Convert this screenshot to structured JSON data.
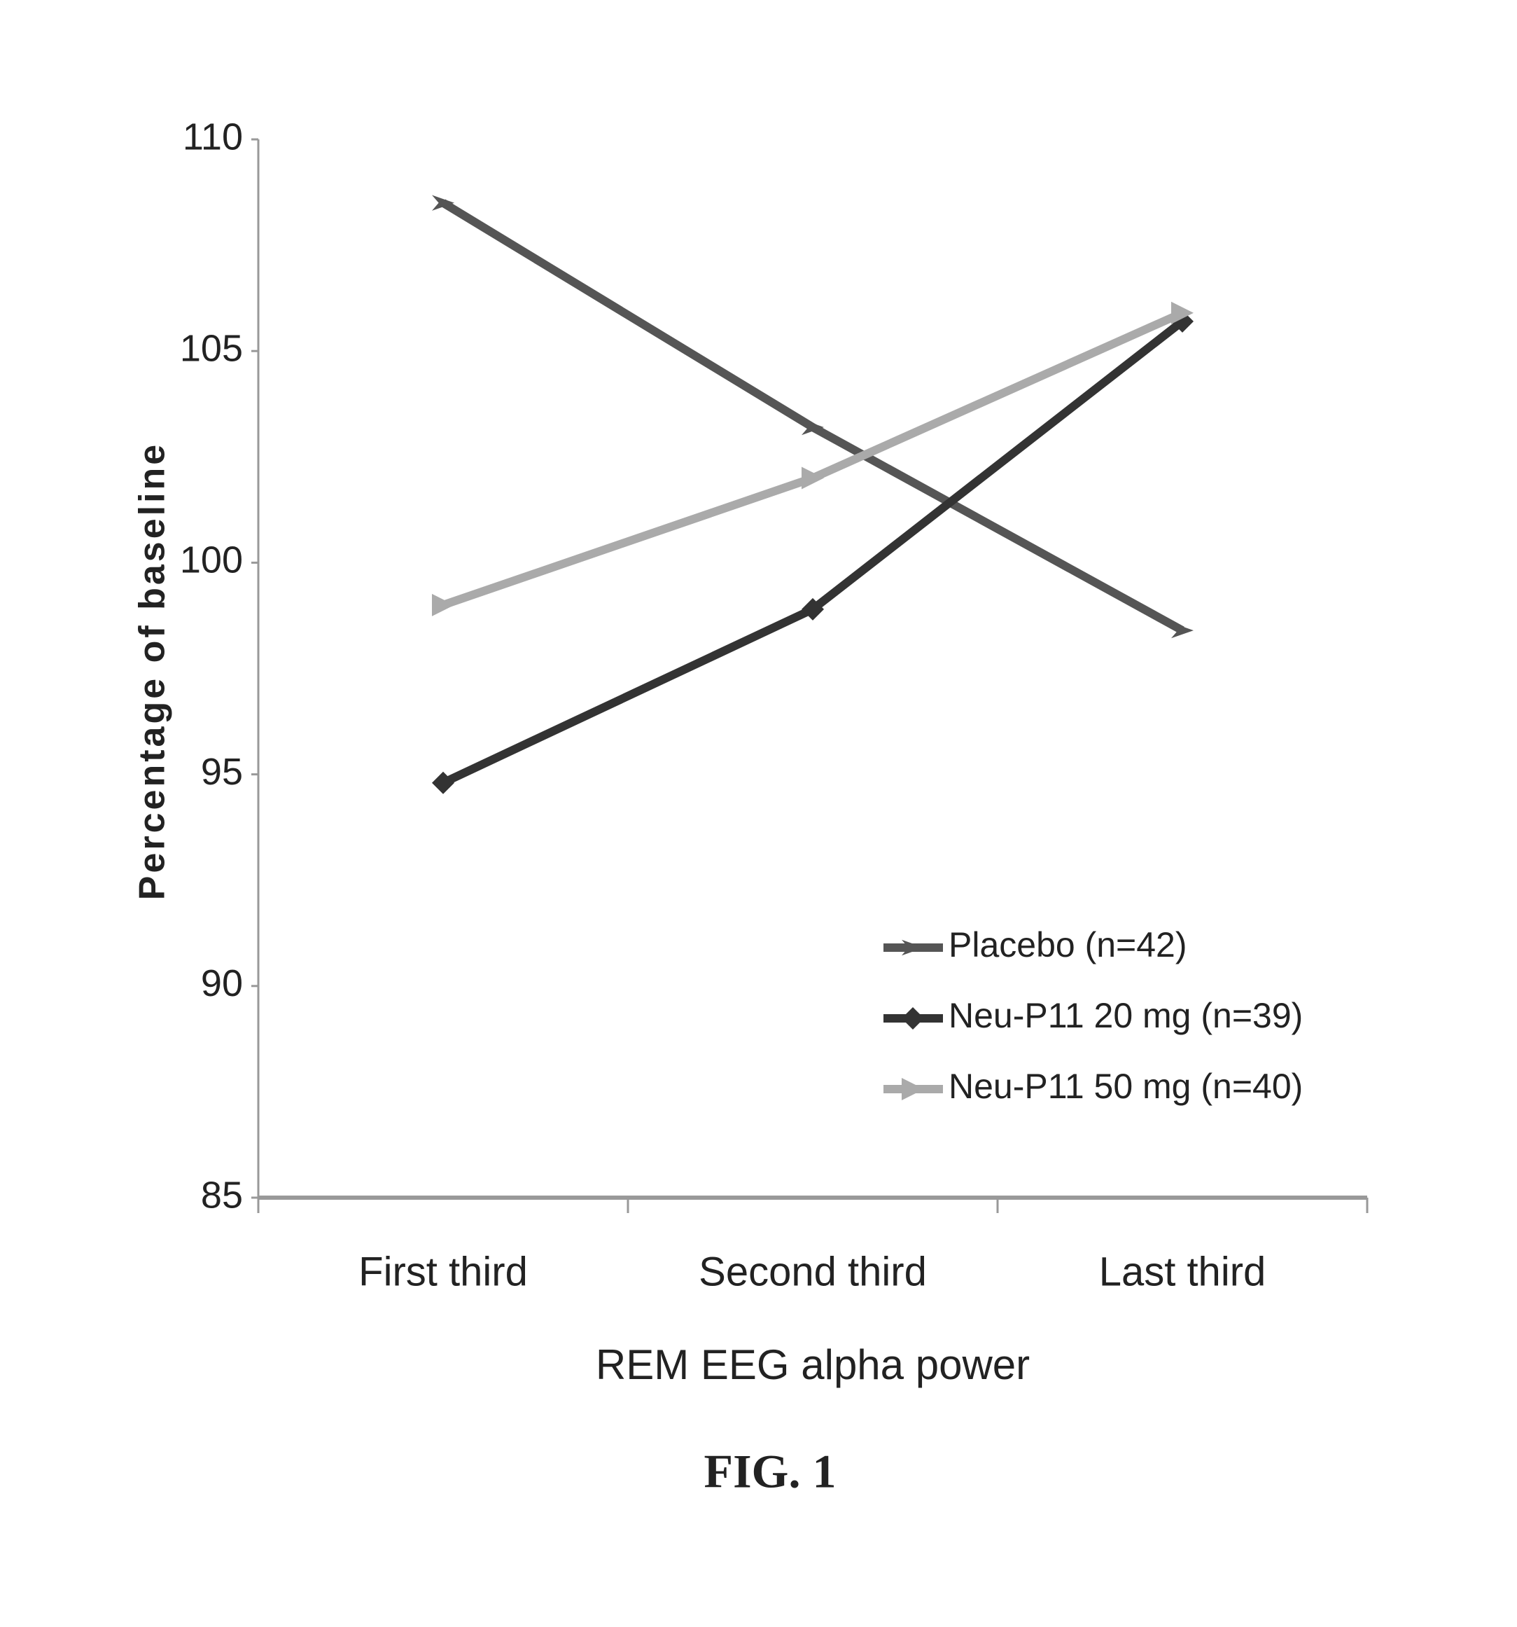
{
  "chart_data": {
    "type": "line",
    "x_label": "REM EEG alpha power",
    "y_label": "Percentage of baseline",
    "categories": [
      "First third",
      "Second third",
      "Last third"
    ],
    "series": [
      {
        "name": "Placebo (n=42)",
        "color": "#555555",
        "marker": "arrow",
        "values": [
          108.5,
          103.2,
          98.4
        ]
      },
      {
        "name": "Neu-P11 20 mg (n=39)",
        "color": "#333333",
        "marker": "diamond",
        "values": [
          94.8,
          98.9,
          105.7
        ]
      },
      {
        "name": "Neu-P11 50 mg (n=40)",
        "color": "#aaaaaa",
        "marker": "triangle",
        "values": [
          99.0,
          102.0,
          105.9
        ]
      }
    ],
    "ylim": [
      85,
      110
    ],
    "yticks": [
      85,
      90,
      95,
      100,
      105,
      110
    ],
    "grid": false,
    "legend": "lower right"
  },
  "figure_label": "FIG. 1"
}
